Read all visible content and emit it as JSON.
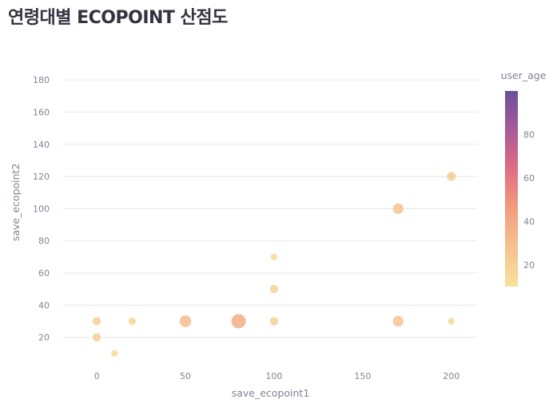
{
  "title": "연령대별 ECOPOINT 산점도",
  "chart_data": {
    "type": "scatter",
    "xlabel": "save_ecopoint1",
    "ylabel": "save_ecopoint2",
    "xlim": [
      -19,
      215
    ],
    "ylim": [
      4,
      186
    ],
    "x_ticks": [
      0,
      50,
      100,
      150,
      200
    ],
    "y_ticks": [
      20,
      40,
      60,
      80,
      100,
      120,
      140,
      160,
      180
    ],
    "grid": true,
    "color_legend": {
      "title": "user_age",
      "range": [
        10,
        100
      ],
      "ticks": [
        20,
        40,
        60,
        80
      ],
      "colors": [
        "#f7e29a",
        "#f6c18f",
        "#f19d7c",
        "#e06c85",
        "#a85a97",
        "#6a4e9d"
      ]
    },
    "points": [
      {
        "x": 0,
        "y": 30,
        "age": 20
      },
      {
        "x": 0,
        "y": 20,
        "age": 20
      },
      {
        "x": 10,
        "y": 10,
        "age": 15
      },
      {
        "x": 20,
        "y": 30,
        "age": 17
      },
      {
        "x": 50,
        "y": 30,
        "age": 30
      },
      {
        "x": 80,
        "y": 30,
        "age": 38
      },
      {
        "x": 100,
        "y": 70,
        "age": 15
      },
      {
        "x": 100,
        "y": 50,
        "age": 20
      },
      {
        "x": 100,
        "y": 30,
        "age": 20
      },
      {
        "x": 170,
        "y": 100,
        "age": 27
      },
      {
        "x": 170,
        "y": 30,
        "age": 27
      },
      {
        "x": 200,
        "y": 120,
        "age": 22
      },
      {
        "x": 200,
        "y": 30,
        "age": 15
      }
    ]
  }
}
